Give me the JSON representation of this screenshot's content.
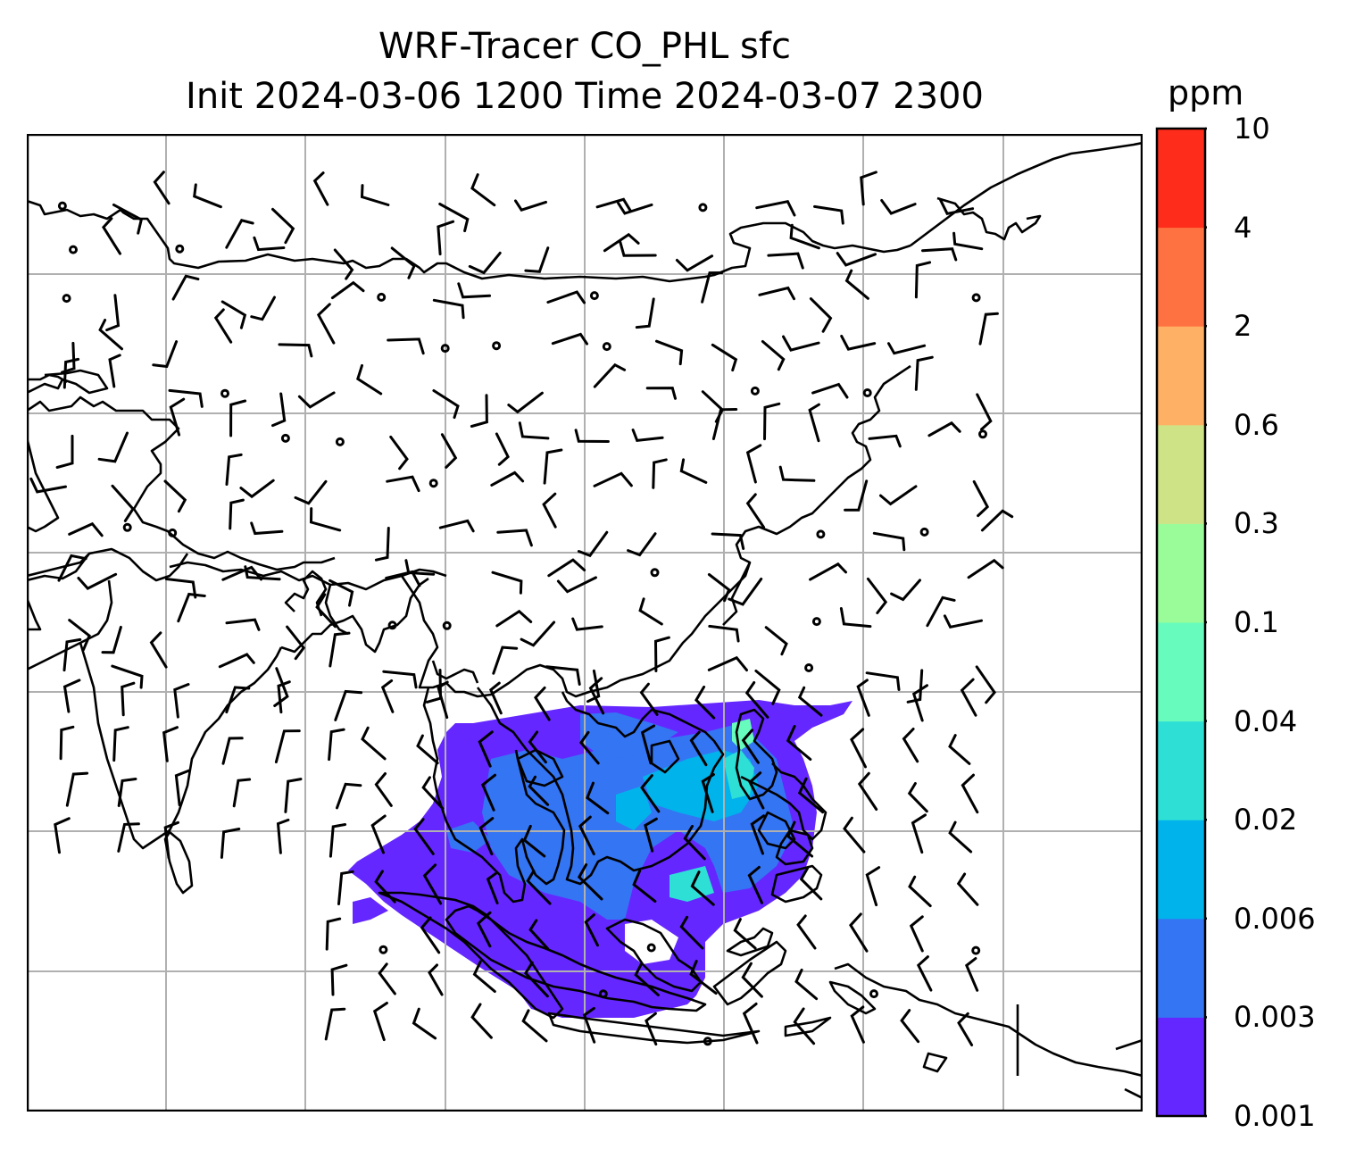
{
  "title": {
    "line1": "WRF-Tracer CO_PHL sfc",
    "line2": "Init 2024-03-06 1200 Time 2024-03-07 2300"
  },
  "colorbar": {
    "unit": "ppm",
    "ticks": [
      "0.001",
      "0.003",
      "0.006",
      "0.02",
      "0.04",
      "0.1",
      "0.3",
      "0.6",
      "2",
      "4",
      "10"
    ],
    "colors": [
      "#6527ff",
      "#3475f3",
      "#01b3eb",
      "#2edfd6",
      "#67fcbd",
      "#9afb99",
      "#cde386",
      "#feb064",
      "#fe7140",
      "#fe2c1a"
    ]
  },
  "map": {
    "region": "South, East and Southeast Asia",
    "grid": true,
    "overlays": [
      "coastlines",
      "country borders",
      "wind barbs",
      "calm-wind circles"
    ],
    "tracer_plume": "Philippines / South China Sea / Indochina"
  }
}
